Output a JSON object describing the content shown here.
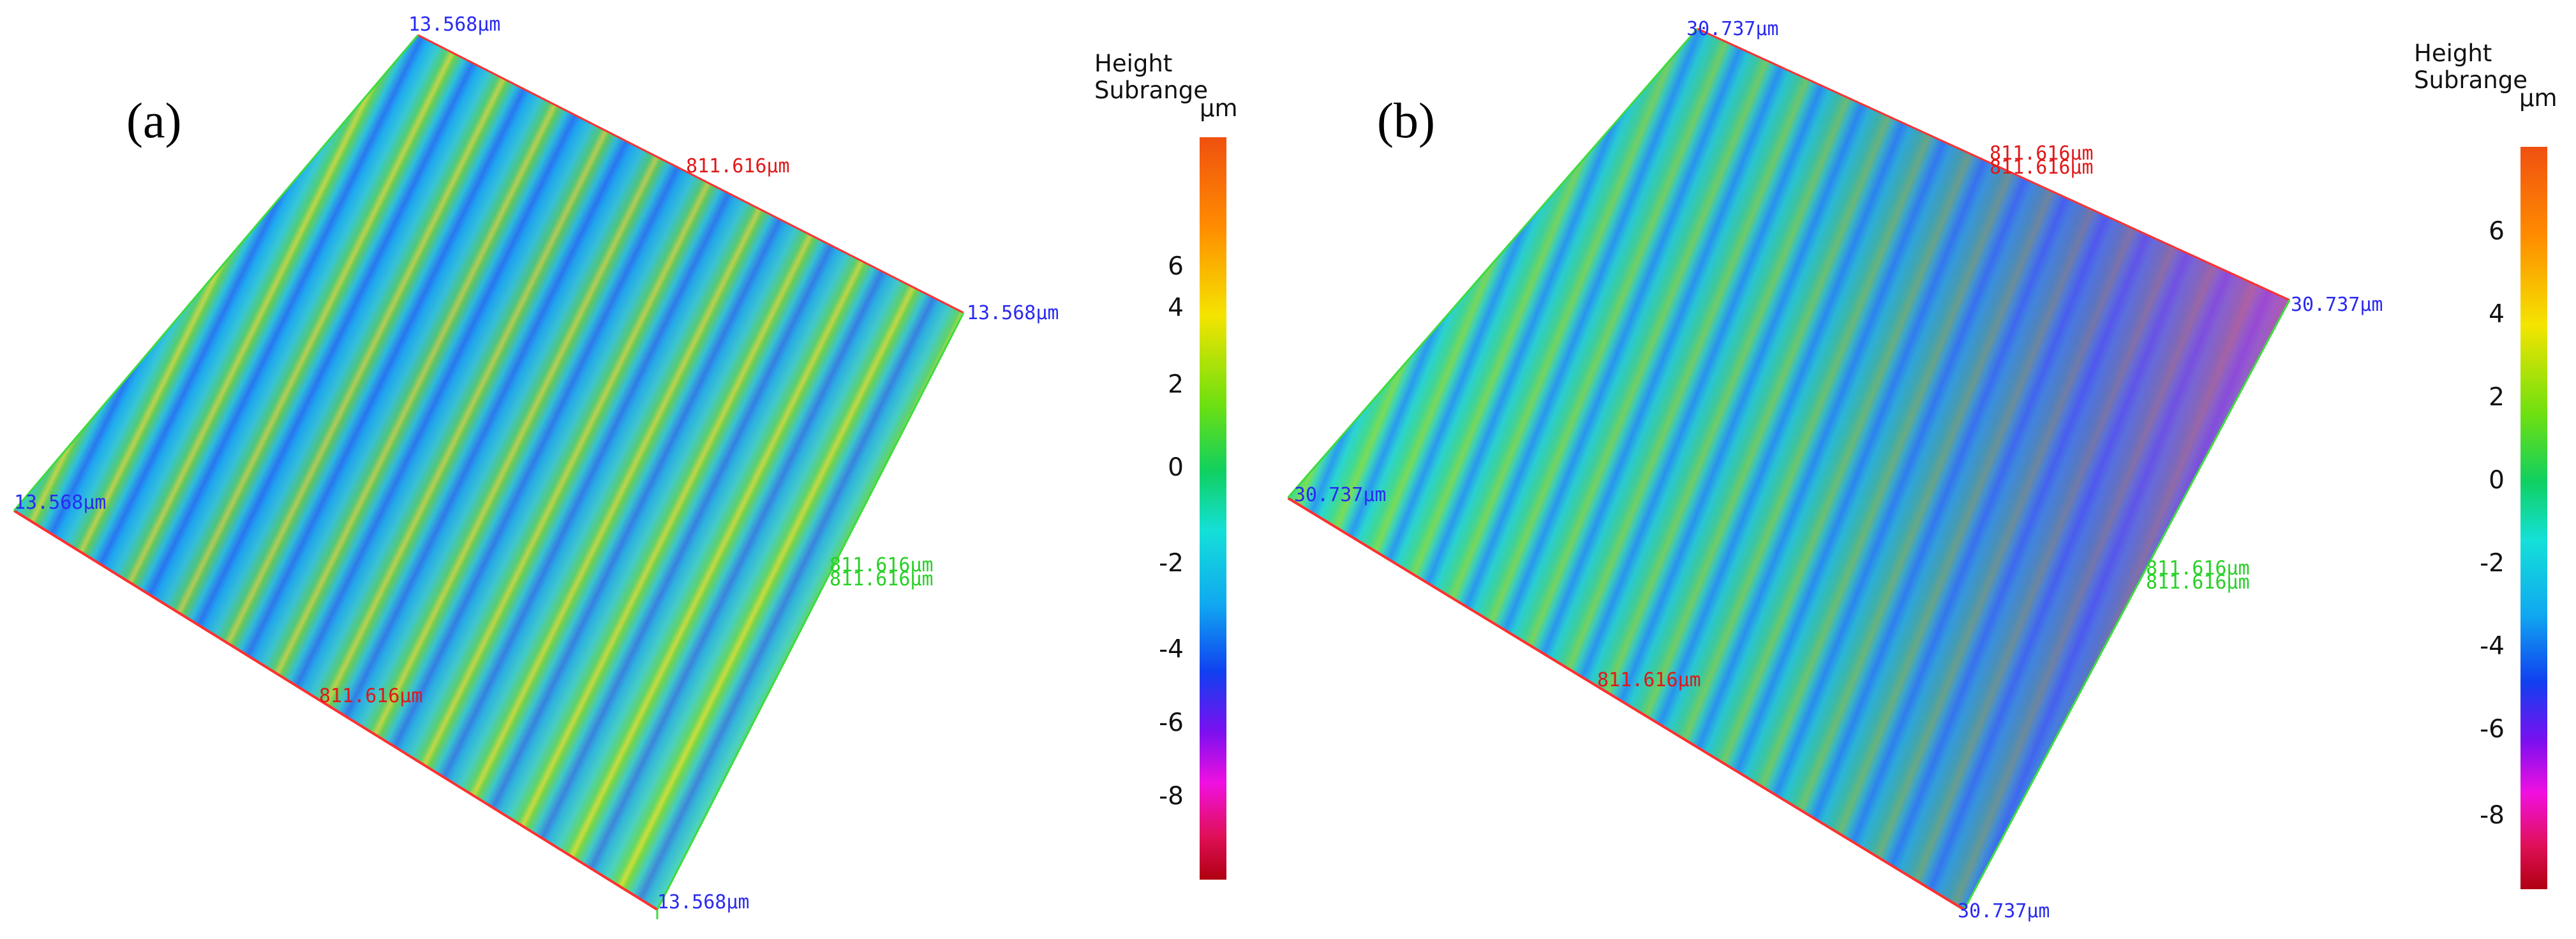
{
  "panel_a": {
    "label": "(a)",
    "labels": {
      "top": "13.568µm",
      "right": "13.568µm",
      "left": "13.568µm",
      "bottom": "13.568µm",
      "x_top_edge": "811.616µm",
      "x_bottom_edge": "811.616µm",
      "y_right_edge_1": "811.616µm",
      "y_right_edge_2": "811.616µm"
    },
    "colorbar": {
      "title_line1": "Height",
      "title_line2": "Subrange",
      "unit": "µm",
      "ticks": [
        "6",
        "4",
        "2",
        "0",
        "-2",
        "-4",
        "-6",
        "-8"
      ]
    }
  },
  "panel_b": {
    "label": "(b)",
    "labels": {
      "top": "30.737µm",
      "right": "30.737µm",
      "left": "30.737µm",
      "bottom": "30.737µm",
      "x_top_edge_1": "811.616µm",
      "x_top_edge_2": "811.616µm",
      "x_bottom_edge": "811.616µm",
      "y_right_edge_1": "811.616µm",
      "y_right_edge_2": "811.616µm"
    },
    "colorbar": {
      "title_line1": "Height",
      "title_line2": "Subrange",
      "unit": "µm",
      "ticks": [
        "6",
        "4",
        "2",
        "0",
        "-2",
        "-4",
        "-6",
        "-8"
      ]
    }
  },
  "colors": {
    "edge_red": "#ff3030",
    "edge_green": "#3ddc3d",
    "label_blue": "#2a2af0",
    "label_red": "#e01818",
    "label_green": "#26d026"
  }
}
